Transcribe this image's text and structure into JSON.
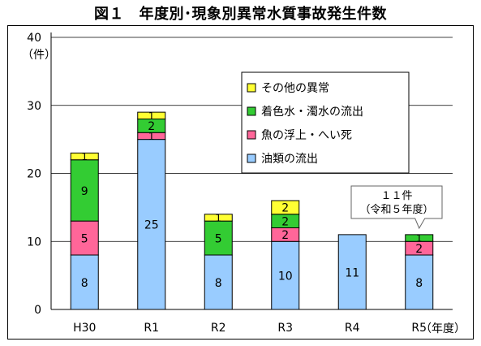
{
  "title": "図１　年度別･現象別異常水質事故発生件数",
  "chart_data": {
    "type": "bar",
    "stacked": true,
    "categories": [
      "H30",
      "R1",
      "R2",
      "R3",
      "R4",
      "R5"
    ],
    "xlabel": "（年度）",
    "ylabel": "（件）",
    "ylim": [
      0,
      40
    ],
    "yticks": [
      0,
      10,
      20,
      30,
      40
    ],
    "grid": true,
    "legend_position": "top-right",
    "series": [
      {
        "name": "油類の流出",
        "values": [
          8,
          25,
          8,
          10,
          11,
          8
        ],
        "color": "#99ccff"
      },
      {
        "name": "魚の浮上・へい死",
        "values": [
          5,
          1,
          0,
          2,
          0,
          2
        ],
        "color": "#ff6699"
      },
      {
        "name": "着色水・濁水の流出",
        "values": [
          9,
          2,
          5,
          2,
          0,
          1
        ],
        "color": "#33cc33"
      },
      {
        "name": "その他の異常",
        "values": [
          1,
          1,
          1,
          2,
          0,
          0
        ],
        "color": "#ffff33"
      }
    ],
    "legend_order": [
      3,
      2,
      1,
      0
    ],
    "annotation": {
      "category_index": 5,
      "lines": [
        "１１件",
        "（令和５年度）"
      ]
    }
  }
}
